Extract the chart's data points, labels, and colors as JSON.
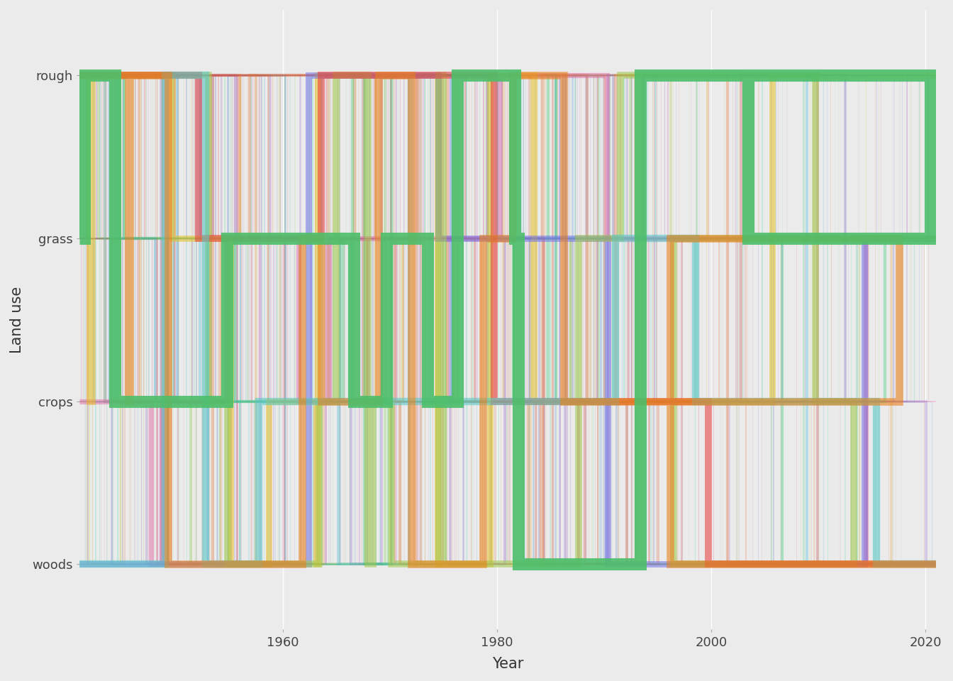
{
  "land_use_categories": [
    "rough",
    "grass",
    "crops",
    "woods"
  ],
  "y_positions": {
    "rough": 3,
    "grass": 2,
    "crops": 1,
    "woods": 0
  },
  "year_start": 1941,
  "year_end": 2021,
  "x_ticks": [
    1960,
    1980,
    2000,
    2020
  ],
  "xlabel": "Year",
  "ylabel": "Land use",
  "background_color": "#ebebeb",
  "grid_color": "#ffffff",
  "n_vectors": 100,
  "seed": 42,
  "colors": [
    "#4dbe6a",
    "#e8821e",
    "#5bc8c8",
    "#e84040",
    "#a0c84a",
    "#7070e8",
    "#e8c020",
    "#e060a0",
    "#30c870",
    "#e87030",
    "#40b8e0",
    "#c84040",
    "#80d050",
    "#9060d0",
    "#e8a030",
    "#50c8a0",
    "#d04060",
    "#60d890",
    "#e05020",
    "#5090e0",
    "#b8e040",
    "#d060c0",
    "#30e0b0",
    "#e86030",
    "#6060d0",
    "#a8e050",
    "#e040a0",
    "#20d0c0",
    "#e88020",
    "#8040c0",
    "#50e070",
    "#e04050",
    "#60b0e0",
    "#d0c030",
    "#c050d0",
    "#30d880",
    "#e07040",
    "#4080d0",
    "#e0c840",
    "#a040b0",
    "#40e0a0",
    "#e05040",
    "#5098d0",
    "#c0d040",
    "#b030b0",
    "#28d8b0",
    "#e06020",
    "#7048c8",
    "#a0e048",
    "#e830a0",
    "#18d0b8",
    "#e07828",
    "#5858d8",
    "#b0d848",
    "#d840b8",
    "#38c888",
    "#e06838",
    "#4878d0",
    "#c8c838",
    "#c038b8",
    "#48d870",
    "#e05830",
    "#6068c8",
    "#b8d050",
    "#c830a0",
    "#58c8a8",
    "#e04828",
    "#7060c0",
    "#a0c858",
    "#b82898",
    "#38d878",
    "#e06028",
    "#5868c0",
    "#b0c850",
    "#c02890",
    "#48b8a0",
    "#d05030",
    "#6858b8",
    "#a8c060",
    "#b82080",
    "#28c878",
    "#c84828",
    "#4860b8",
    "#c0b848",
    "#a81878",
    "#38b890",
    "#d04020",
    "#5858b0",
    "#b8b040",
    "#982070",
    "#28a880",
    "#c03818",
    "#4850a8",
    "#b0a838",
    "#882068",
    "#18a870",
    "#b83010",
    "#3848a0",
    "#a8a030",
    "#781860",
    "#08a060",
    "#a82808",
    "#2840a0",
    "#989828",
    "#682058"
  ],
  "ylim_bottom": -0.4,
  "ylim_top": 3.4
}
